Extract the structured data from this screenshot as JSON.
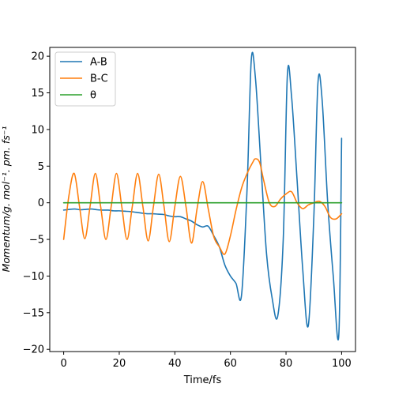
{
  "chart_data": {
    "type": "line",
    "xlabel": "Time/fs",
    "ylabel": "Momentum/g. mol⁻¹. pm. fs⁻¹",
    "xlim": [
      -5,
      105
    ],
    "ylim": [
      -20.3,
      21.2
    ],
    "xticks": [
      0,
      20,
      40,
      60,
      80,
      100
    ],
    "yticks": [
      -20,
      -15,
      -10,
      -5,
      0,
      5,
      10,
      15,
      20
    ],
    "grid": false,
    "legend_position": "top-left",
    "series": [
      {
        "name": "A-B",
        "color": "#1f77b4",
        "x": [
          0,
          2,
          4,
          6,
          8,
          10,
          12,
          14,
          16,
          18,
          20,
          22,
          24,
          26,
          28,
          30,
          32,
          34,
          36,
          38,
          40,
          42,
          44,
          46,
          48,
          50,
          52,
          54,
          56,
          58,
          60,
          62,
          64,
          66,
          67.5,
          69,
          71,
          73,
          75,
          77,
          79,
          80.5,
          82,
          84,
          86,
          88,
          90,
          91.5,
          93,
          95,
          97,
          99,
          100
        ],
        "y": [
          -1.0,
          -0.9,
          -0.85,
          -0.95,
          -0.9,
          -0.85,
          -0.95,
          -1.0,
          -1.0,
          -1.1,
          -1.1,
          -1.15,
          -1.2,
          -1.3,
          -1.4,
          -1.5,
          -1.5,
          -1.55,
          -1.6,
          -1.8,
          -1.9,
          -1.9,
          -2.2,
          -2.5,
          -3.0,
          -3.3,
          -3.2,
          -4.5,
          -6.0,
          -8.5,
          -10.0,
          -11.0,
          -12.6,
          2.0,
          19.5,
          17.0,
          5.0,
          -7.0,
          -13.0,
          -15.5,
          -5.0,
          17.5,
          14.5,
          3.0,
          -9.0,
          -16.8,
          -2.0,
          16.4,
          14.0,
          0.0,
          -10.0,
          -18.0,
          8.8
        ]
      },
      {
        "name": "B-C",
        "color": "#ff7f0e",
        "x": [
          0,
          1.9,
          3.8,
          5.7,
          7.6,
          9.5,
          11.4,
          13.3,
          15.2,
          17.1,
          19.0,
          20.9,
          22.8,
          24.7,
          26.6,
          28.5,
          30.4,
          32.3,
          34.2,
          36.1,
          38.0,
          40.0,
          42.0,
          44.0,
          46.0,
          48.0,
          50.0,
          52.0,
          54.0,
          56.0,
          58.0,
          60.0,
          62.0,
          64.0,
          66.0,
          68.0,
          69.0,
          70.5,
          72.0,
          74.0,
          76.0,
          78.0,
          80.0,
          82.0,
          84.0,
          86.0,
          88.0,
          90.0,
          92.0,
          94.0,
          96.0,
          98.0,
          100.0
        ],
        "y": [
          -5.0,
          1.0,
          4.0,
          -0.5,
          -4.9,
          -0.5,
          4.0,
          -0.5,
          -5.0,
          -0.5,
          4.0,
          -0.5,
          -5.0,
          -0.5,
          4.0,
          -0.5,
          -5.2,
          -0.5,
          3.9,
          -0.5,
          -5.3,
          -0.5,
          3.6,
          -0.5,
          -5.5,
          -0.8,
          2.9,
          -0.8,
          -4.6,
          -6.0,
          -7.0,
          -4.5,
          -1.0,
          2.0,
          4.0,
          5.5,
          6.0,
          5.5,
          3.0,
          0.0,
          -0.5,
          0.5,
          1.2,
          1.5,
          0.0,
          -0.8,
          -0.3,
          0.0,
          0.2,
          -0.5,
          -2.0,
          -2.2,
          -1.5
        ]
      },
      {
        "name": "θ",
        "color": "#2ca02c",
        "x": [
          0,
          100
        ],
        "y": [
          0,
          0
        ]
      }
    ]
  }
}
